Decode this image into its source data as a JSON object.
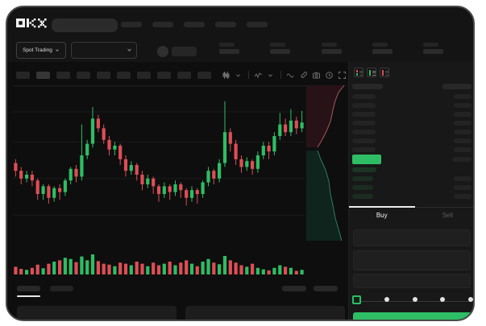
{
  "app": {
    "logo_text": "OKX"
  },
  "colors": {
    "green": "#2ebd64",
    "red": "#dd4e56",
    "window_bg": "#141414",
    "chart_bg": "#0e0e0e",
    "panel_bg": "#181818",
    "depth_ask_fill": "#271317",
    "depth_ask_line": "#a4565c",
    "depth_bid_fill": "#0e241d",
    "depth_bid_line": "#2f7a66",
    "grid": "#1a1a1a",
    "placeholder": "#282828"
  },
  "header": {
    "nav_placeholder_count": 5
  },
  "subheader": {
    "market_selector_label": "Spot Trading",
    "stat_group_count": 5
  },
  "chart_toolbar": {
    "timeframe_button_count": 10,
    "active_timeframe_index": 1,
    "icons": [
      "candles-icon",
      "chevron-down-icon",
      "divider",
      "indicator-icon",
      "chevron-down-icon",
      "divider",
      "wave-icon",
      "pencil-icon",
      "camera-icon",
      "clock-icon",
      "expand-icon"
    ]
  },
  "chart_data": {
    "type": "candlestick",
    "title": "",
    "xlabel": "",
    "ylabel": "",
    "grid": "faint-horizontal",
    "value_scale_note": "no tick labels visible; prices stored on relative 0-100 scale read from pixel geometry",
    "gridlines_pct": [
      82.5,
      67,
      48,
      29
    ],
    "candles_format": [
      "open",
      "close",
      "low",
      "high"
    ],
    "candles": [
      [
        56,
        52,
        49,
        58
      ],
      [
        52,
        48,
        45,
        54
      ],
      [
        48,
        50,
        46,
        52
      ],
      [
        50,
        47,
        44,
        52
      ],
      [
        47,
        40,
        37,
        48
      ],
      [
        40,
        44,
        37,
        45
      ],
      [
        44,
        38,
        35,
        45
      ],
      [
        38,
        43,
        36,
        44
      ],
      [
        43,
        41,
        37,
        45
      ],
      [
        41,
        47,
        39,
        48
      ],
      [
        47,
        53,
        45,
        54
      ],
      [
        53,
        49,
        46,
        55
      ],
      [
        49,
        60,
        47,
        76
      ],
      [
        60,
        66,
        58,
        68
      ],
      [
        66,
        79,
        64,
        85
      ],
      [
        79,
        74,
        72,
        81
      ],
      [
        74,
        68,
        66,
        76
      ],
      [
        68,
        63,
        60,
        70
      ],
      [
        63,
        65,
        60,
        67
      ],
      [
        65,
        58,
        55,
        66
      ],
      [
        58,
        52,
        49,
        60
      ],
      [
        52,
        55,
        50,
        57
      ],
      [
        55,
        50,
        47,
        56
      ],
      [
        50,
        45,
        42,
        52
      ],
      [
        45,
        48,
        43,
        50
      ],
      [
        48,
        44,
        40,
        49
      ],
      [
        44,
        40,
        36,
        45
      ],
      [
        40,
        44,
        38,
        46
      ],
      [
        44,
        41,
        37,
        45
      ],
      [
        41,
        45,
        39,
        47
      ],
      [
        45,
        42,
        38,
        46
      ],
      [
        42,
        38,
        34,
        43
      ],
      [
        38,
        42,
        36,
        44
      ],
      [
        42,
        40,
        35,
        43
      ],
      [
        40,
        46,
        38,
        47
      ],
      [
        46,
        52,
        44,
        54
      ],
      [
        52,
        48,
        45,
        53
      ],
      [
        48,
        56,
        46,
        58
      ],
      [
        56,
        72,
        54,
        88
      ],
      [
        72,
        66,
        62,
        74
      ],
      [
        66,
        58,
        55,
        68
      ],
      [
        58,
        54,
        51,
        60
      ],
      [
        54,
        57,
        52,
        59
      ],
      [
        57,
        53,
        50,
        58
      ],
      [
        53,
        60,
        51,
        62
      ],
      [
        60,
        65,
        58,
        67
      ],
      [
        65,
        62,
        58,
        67
      ],
      [
        62,
        70,
        60,
        72
      ],
      [
        70,
        76,
        68,
        82
      ],
      [
        76,
        72,
        70,
        79
      ],
      [
        72,
        78,
        70,
        84
      ],
      [
        78,
        74,
        71,
        80
      ],
      [
        74,
        77,
        72,
        83
      ]
    ],
    "volume_pct": [
      30,
      22,
      18,
      26,
      38,
      24,
      42,
      50,
      55,
      65,
      60,
      48,
      70,
      55,
      78,
      52,
      42,
      38,
      32,
      46,
      42,
      36,
      50,
      42,
      32,
      46,
      36,
      42,
      50,
      36,
      46,
      55,
      42,
      32,
      50,
      60,
      46,
      40,
      72,
      55,
      46,
      36,
      30,
      42,
      26,
      20,
      16,
      26,
      36,
      30,
      26,
      14,
      18
    ],
    "depth": {
      "orientation": "vertical-right-edge",
      "asks_line": [
        [
          47,
          3
        ],
        [
          40,
          12
        ],
        [
          36,
          22
        ],
        [
          33,
          34
        ],
        [
          30,
          48
        ],
        [
          25,
          60
        ],
        [
          20,
          70
        ],
        [
          14,
          80
        ]
      ],
      "bids_line": [
        [
          14,
          84
        ],
        [
          18,
          95
        ],
        [
          24,
          108
        ],
        [
          28,
          122
        ],
        [
          30,
          138
        ],
        [
          33,
          152
        ],
        [
          36,
          168
        ],
        [
          40,
          182
        ],
        [
          44,
          196
        ]
      ]
    }
  },
  "orderbook": {
    "view_modes": [
      "book-all-icon",
      "book-bids-icon",
      "book-asks-icon"
    ],
    "ask_row_count": 7,
    "bid_row_count": 4
  },
  "trade_panel": {
    "buy_tab_label": "Buy",
    "sell_tab_label": "Sell",
    "active_tab": "Buy",
    "field_count": 3,
    "slider": {
      "stops": 5,
      "selected_index": 0
    }
  },
  "bottom_bar": {
    "left_tab_count": 2,
    "active_left_tab": 0,
    "right_placeholder_count": 2,
    "panel_count": 2
  }
}
